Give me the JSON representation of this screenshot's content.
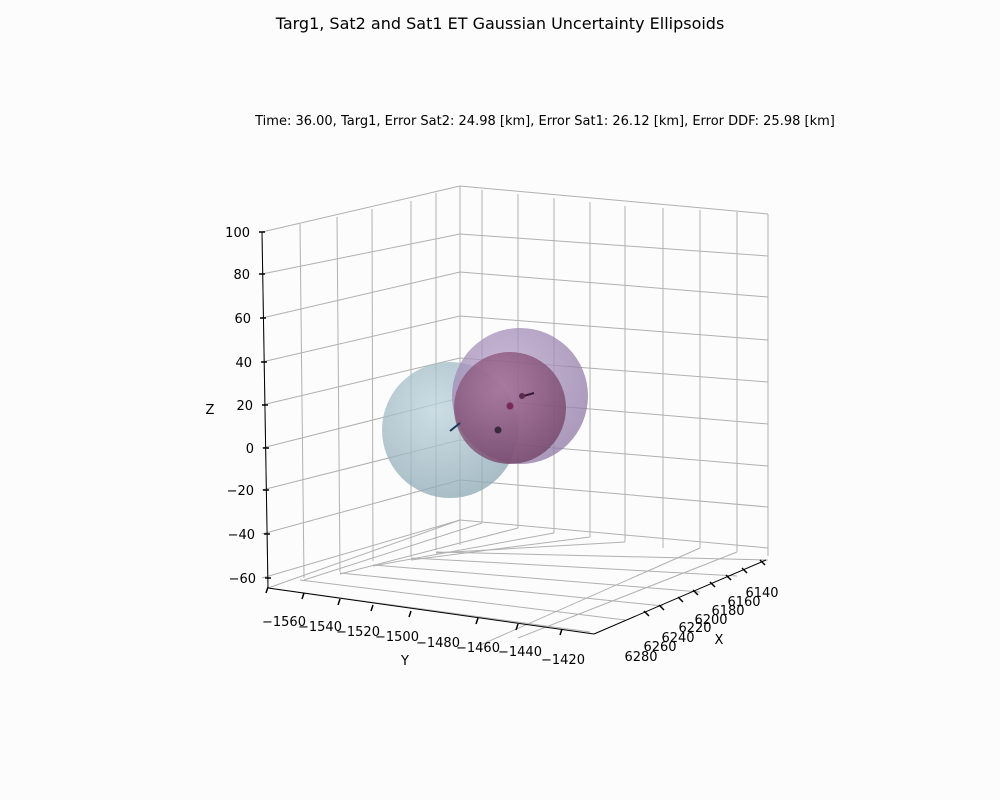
{
  "chart_data": {
    "type": "3d-scatter",
    "title": "Targ1, Sat2 and Sat1 ET Gaussian Uncertainty Ellipsoids",
    "subtitle": "Time: 36.00, Targ1, Error Sat2: 24.98 [km], Error Sat1: 26.12 [km], Error DDF: 25.98 [km]",
    "xlabel": "X",
    "ylabel": "Y",
    "zlabel": "Z",
    "x_ticks": [
      "6140",
      "6160",
      "6180",
      "6200",
      "6220",
      "6240",
      "6260",
      "6280"
    ],
    "y_ticks": [
      "−1560",
      "−1540",
      "−1520",
      "−1500",
      "−1480",
      "−1460",
      "−1440",
      "−1420"
    ],
    "z_ticks": [
      "100",
      "80",
      "60",
      "40",
      "20",
      "0",
      "−20",
      "−40",
      "−60"
    ],
    "grid": true,
    "ellipsoids": [
      {
        "color": "#9fbfcc",
        "opacity": 0.75
      },
      {
        "color": "#a98fbd",
        "opacity": 0.75
      },
      {
        "color": "#8f4f7a",
        "opacity": 0.75
      }
    ],
    "points": [
      {
        "color": "#3a2a3a"
      },
      {
        "color": "#7a2a5a"
      },
      {
        "color": "#5a2a4a"
      }
    ],
    "colors": {
      "grid": "#b0b0b0",
      "axis": "#000000"
    }
  }
}
